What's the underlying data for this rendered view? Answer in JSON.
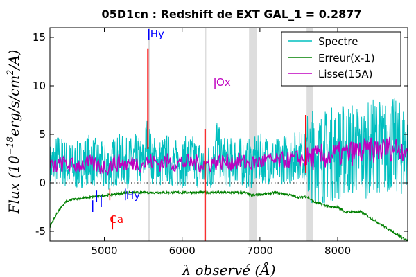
{
  "chart_data": {
    "type": "line",
    "title": "05D1cn : Redshift de EXT GAL_1 = 0.2877",
    "xlabel": "λ observé (Å)",
    "ylabel": "Flux (10^-18 erg/s/cm^2/A)",
    "ylabel_parts": {
      "prefix": "Flux (10",
      "exponent": "−18",
      "units": "erg/s/cm",
      "units_exp": "2",
      "suffix": "/A)"
    },
    "xlim": [
      4300,
      8900
    ],
    "ylim": [
      -6,
      16
    ],
    "xticks": [
      5000,
      6000,
      7000,
      8000
    ],
    "yticks": [
      -5,
      0,
      5,
      10,
      15
    ],
    "legend_position": "top-right",
    "series": [
      {
        "name": "Spectre",
        "color": "#00bfbf",
        "x": [
          4300,
          4400,
          4500,
          4600,
          4700,
          4800,
          4900,
          5000,
          5100,
          5200,
          5300,
          5400,
          5500,
          5560,
          5600,
          5700,
          5800,
          5900,
          6000,
          6100,
          6200,
          6300,
          6400,
          6440,
          6500,
          6600,
          6700,
          6800,
          6900,
          7000,
          7100,
          7200,
          7300,
          7400,
          7500,
          7600,
          7700,
          7800,
          7900,
          8000,
          8100,
          8200,
          8300,
          8400,
          8500,
          8600,
          8700,
          8800,
          8900
        ],
        "y": [
          1.5,
          2.5,
          2.0,
          1.5,
          2.0,
          2.5,
          2.0,
          1.5,
          2.0,
          2.5,
          2.0,
          2.5,
          2.0,
          5.0,
          2.5,
          2.0,
          2.5,
          2.0,
          2.0,
          2.5,
          2.0,
          1.5,
          2.0,
          4.5,
          2.5,
          2.0,
          2.5,
          2.0,
          2.0,
          2.5,
          2.5,
          2.0,
          2.5,
          2.5,
          3.0,
          2.5,
          3.0,
          2.5,
          3.0,
          3.0,
          3.5,
          3.5,
          3.0,
          3.5,
          4.0,
          3.5,
          4.0,
          3.5,
          3.5
        ]
      },
      {
        "name": "Erreur(x-1)",
        "color": "#008000",
        "x": [
          4300,
          4400,
          4500,
          4600,
          4700,
          4800,
          4900,
          5000,
          5100,
          5200,
          5300,
          5400,
          5500,
          5600,
          5700,
          5800,
          5900,
          6000,
          6100,
          6200,
          6300,
          6400,
          6500,
          6600,
          6700,
          6800,
          6900,
          7000,
          7100,
          7200,
          7300,
          7400,
          7500,
          7600,
          7700,
          7800,
          7900,
          8000,
          8100,
          8200,
          8300,
          8400,
          8500,
          8600,
          8700,
          8800,
          8900
        ],
        "y": [
          -4.5,
          -3.0,
          -2.0,
          -1.7,
          -1.6,
          -1.5,
          -1.4,
          -1.3,
          -1.2,
          -1.1,
          -1.0,
          -1.0,
          -1.0,
          -1.0,
          -1.0,
          -1.0,
          -1.0,
          -1.0,
          -1.0,
          -1.0,
          -1.0,
          -1.0,
          -1.0,
          -1.0,
          -1.0,
          -1.0,
          -1.3,
          -1.2,
          -1.1,
          -1.0,
          -1.1,
          -1.3,
          -1.5,
          -1.4,
          -2.0,
          -2.2,
          -2.5,
          -2.5,
          -3.0,
          -3.0,
          -3.0,
          -3.5,
          -4.0,
          -4.5,
          -5.0,
          -5.5,
          -6.0
        ]
      },
      {
        "name": "Lisse(15A)",
        "color": "#bf00bf",
        "x": [
          4300,
          4400,
          4500,
          4600,
          4700,
          4800,
          4900,
          5000,
          5100,
          5200,
          5300,
          5400,
          5500,
          5600,
          5700,
          5800,
          5900,
          6000,
          6100,
          6200,
          6300,
          6400,
          6500,
          6600,
          6700,
          6800,
          6900,
          7000,
          7100,
          7200,
          7300,
          7400,
          7500,
          7600,
          7700,
          7800,
          7900,
          8000,
          8100,
          8200,
          8300,
          8400,
          8500,
          8600,
          8700,
          8800,
          8900
        ],
        "y": [
          1.5,
          1.8,
          2.0,
          1.7,
          1.9,
          2.0,
          1.8,
          1.6,
          1.9,
          2.1,
          1.9,
          2.1,
          2.0,
          2.2,
          2.0,
          2.2,
          2.0,
          2.1,
          2.1,
          2.0,
          1.9,
          2.1,
          2.2,
          2.1,
          2.2,
          2.1,
          2.0,
          2.2,
          2.3,
          2.2,
          2.3,
          2.4,
          2.5,
          2.4,
          2.6,
          2.7,
          2.8,
          2.9,
          3.0,
          3.1,
          3.2,
          3.3,
          3.4,
          3.5,
          3.6,
          3.6,
          3.6
        ]
      }
    ],
    "emission_lines": [
      {
        "label": "Hy",
        "color": "#0000ff",
        "x": 5590,
        "y_label": 15
      },
      {
        "label": "Ox",
        "color": "#bf00bf",
        "x": 6440,
        "y_label": 10
      }
    ],
    "absorption_markers": [
      {
        "label": "Hy",
        "color": "#0000ff",
        "x": 5280,
        "y_label": -1.3
      },
      {
        "label": "Ca",
        "color": "#ff0000",
        "x": 5070,
        "y_label": -3.8
      }
    ],
    "bad_regions": [
      [
        5565,
        5585
      ],
      [
        6290,
        6310
      ],
      [
        6860,
        6960
      ],
      [
        7600,
        7680
      ]
    ]
  }
}
